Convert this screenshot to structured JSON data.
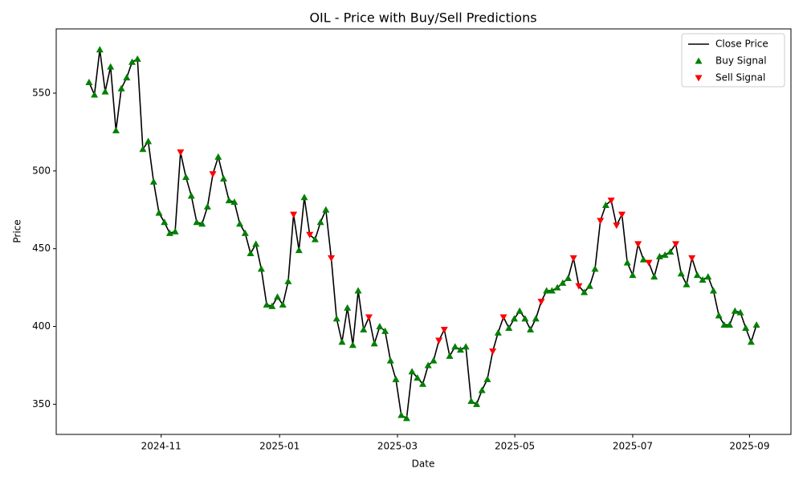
{
  "chart_data": {
    "type": "line",
    "title": "OIL - Price with Buy/Sell Predictions",
    "x_label": "Date",
    "y_label": "Price",
    "xlim": [
      -6.1,
      130.4
    ],
    "ylim": [
      330.6,
      591.3
    ],
    "xticks": [
      {
        "value": 13.4,
        "label": "2024-11"
      },
      {
        "value": 35.4,
        "label": "2025-01"
      },
      {
        "value": 57.3,
        "label": "2025-03"
      },
      {
        "value": 79.1,
        "label": "2025-05"
      },
      {
        "value": 101.0,
        "label": "2025-07"
      },
      {
        "value": 122.7,
        "label": "2025-09"
      }
    ],
    "yticks": [
      350,
      400,
      450,
      500,
      550
    ],
    "legend": "upper right",
    "series": [
      {
        "name": "Close Price",
        "color": "#000000",
        "marker": "line",
        "values": [
          557,
          549,
          578,
          551,
          567,
          526,
          553,
          560,
          570,
          572,
          514,
          519,
          493,
          473,
          467,
          460,
          461,
          512,
          496,
          484,
          467,
          466,
          477,
          498,
          509,
          495,
          481,
          480,
          466,
          460,
          447,
          453,
          437,
          414,
          413,
          419,
          414,
          429,
          472,
          449,
          483,
          459,
          456,
          467,
          475,
          444,
          405,
          390,
          412,
          388,
          423,
          398,
          406,
          389,
          400,
          397,
          378,
          366,
          343,
          341,
          371,
          367,
          363,
          375,
          378,
          391,
          398,
          381,
          387,
          385,
          387,
          352,
          350,
          359,
          366,
          384,
          396,
          406,
          399,
          405,
          410,
          405,
          398,
          405,
          416,
          423,
          423,
          425,
          428,
          431,
          444,
          426,
          422,
          426,
          437,
          468,
          478,
          481,
          465,
          472,
          441,
          433,
          453,
          443,
          441,
          432,
          445,
          446,
          448,
          453,
          434,
          427,
          444,
          433,
          430,
          432,
          423,
          407,
          401,
          401,
          410,
          409,
          399,
          390,
          401
        ]
      },
      {
        "name": "Buy Signal",
        "color": "#008000",
        "marker": "up",
        "values": [
          557,
          549,
          578,
          551,
          567,
          526,
          553,
          560,
          570,
          572,
          514,
          519,
          493,
          473,
          467,
          460,
          461,
          null,
          496,
          484,
          467,
          466,
          477,
          null,
          509,
          495,
          481,
          480,
          466,
          460,
          447,
          453,
          437,
          414,
          413,
          419,
          414,
          429,
          null,
          449,
          483,
          null,
          456,
          467,
          475,
          null,
          405,
          390,
          412,
          388,
          423,
          398,
          null,
          389,
          400,
          397,
          378,
          366,
          343,
          341,
          371,
          367,
          363,
          375,
          378,
          null,
          null,
          381,
          387,
          385,
          387,
          352,
          350,
          359,
          366,
          null,
          396,
          null,
          399,
          405,
          410,
          405,
          398,
          405,
          null,
          423,
          423,
          425,
          428,
          431,
          null,
          null,
          422,
          426,
          437,
          null,
          478,
          null,
          null,
          null,
          441,
          433,
          null,
          443,
          null,
          432,
          445,
          446,
          448,
          null,
          434,
          427,
          null,
          433,
          430,
          432,
          423,
          407,
          401,
          401,
          410,
          409,
          399,
          390,
          401
        ]
      },
      {
        "name": "Sell Signal",
        "color": "#ff0000",
        "marker": "down",
        "values": [
          null,
          null,
          null,
          null,
          null,
          null,
          null,
          null,
          null,
          null,
          null,
          null,
          null,
          null,
          null,
          null,
          null,
          512,
          null,
          null,
          null,
          null,
          null,
          498,
          null,
          null,
          null,
          null,
          null,
          null,
          null,
          null,
          null,
          null,
          null,
          null,
          null,
          null,
          472,
          null,
          null,
          459,
          null,
          null,
          null,
          444,
          null,
          null,
          null,
          null,
          null,
          null,
          406,
          null,
          null,
          null,
          null,
          null,
          null,
          null,
          null,
          null,
          null,
          null,
          null,
          391,
          398,
          null,
          null,
          null,
          null,
          null,
          null,
          null,
          null,
          384,
          null,
          406,
          null,
          null,
          null,
          null,
          null,
          null,
          416,
          null,
          null,
          null,
          null,
          null,
          444,
          426,
          null,
          null,
          null,
          468,
          null,
          481,
          465,
          472,
          null,
          null,
          453,
          null,
          441,
          null,
          null,
          null,
          null,
          453,
          null,
          null,
          444,
          null,
          null,
          null,
          null,
          null,
          null,
          null,
          null,
          null,
          null,
          null,
          null
        ]
      }
    ]
  }
}
